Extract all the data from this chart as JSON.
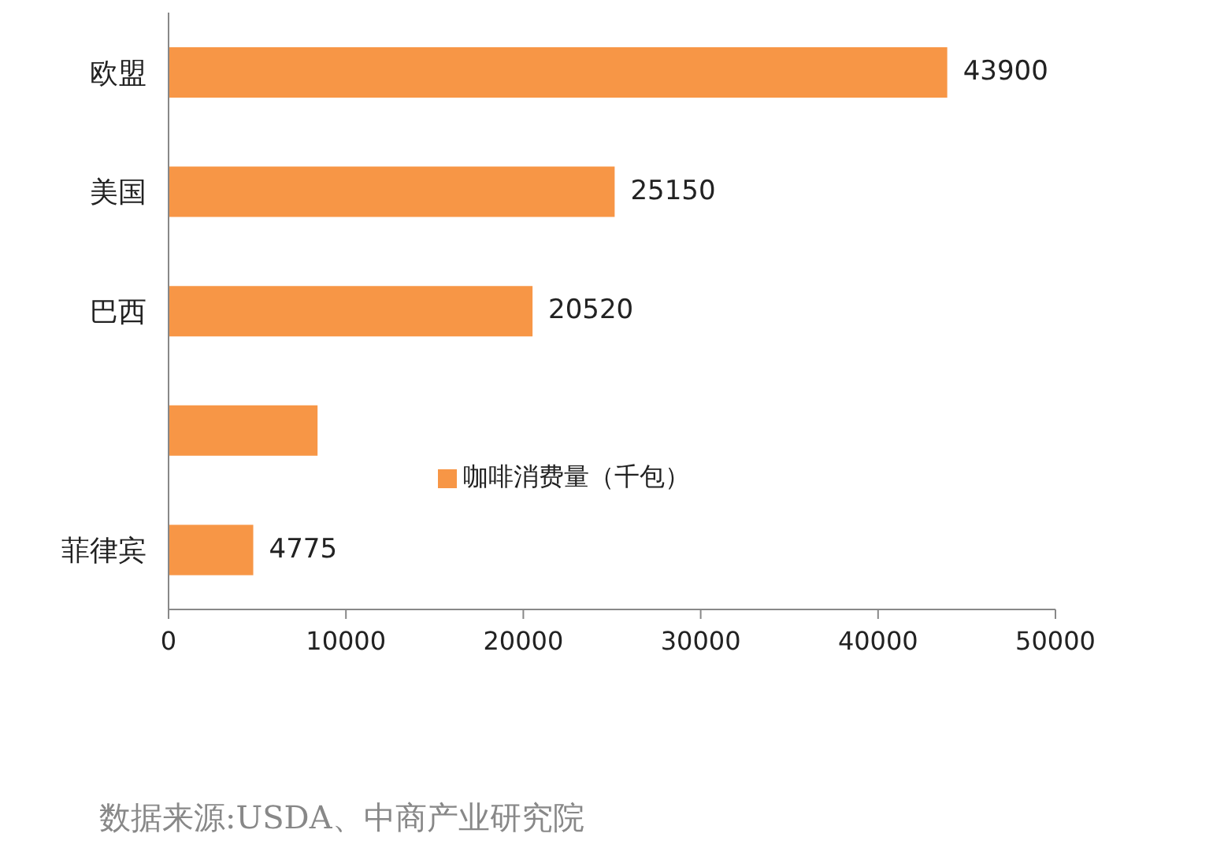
{
  "chart_data": {
    "type": "bar",
    "orientation": "horizontal",
    "categories": [
      "欧盟",
      "美国",
      "巴西",
      null,
      "菲律宾"
    ],
    "series": [
      {
        "name": "咖啡消费量（千包）",
        "color": "#f79646",
        "values": [
          43900,
          25150,
          20520,
          8400,
          4775
        ],
        "value_labels": [
          "43900",
          "25150",
          "20520",
          null,
          "4775"
        ]
      }
    ],
    "xlim": [
      0,
      50000
    ],
    "xticks": [
      0,
      10000,
      20000,
      30000,
      40000,
      50000
    ],
    "legend": "center",
    "annotations": [
      "数据来源:USDA、中商产业研究院"
    ]
  }
}
